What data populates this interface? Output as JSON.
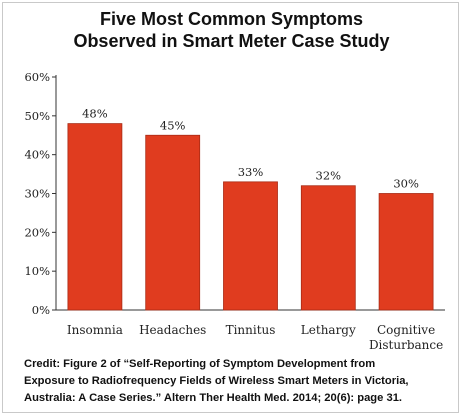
{
  "title": {
    "line1": "Five Most Common Symptoms",
    "line2": "Observed in Smart Meter Case Study"
  },
  "credit": {
    "line1": "Credit:  Figure 2 of “Self-Reporting of Symptom Development from",
    "line2": "Exposure to Radiofrequency Fields of Wireless Smart Meters in Victoria,",
    "line3": "Australia: A Case Series.” Altern Ther Health Med. 2014; 20(6): page 31."
  },
  "chart_data": {
    "type": "bar",
    "categories": [
      [
        "Insomnia"
      ],
      [
        "Headaches"
      ],
      [
        "Tinnitus"
      ],
      [
        "Lethargy"
      ],
      [
        "Cognitive",
        "Disturbance"
      ]
    ],
    "values": [
      48,
      45,
      33,
      32,
      30
    ],
    "value_labels": [
      "48%",
      "45%",
      "33%",
      "32%",
      "30%"
    ],
    "yticks": [
      0,
      10,
      20,
      30,
      40,
      50,
      60
    ],
    "ytick_labels": [
      "0%",
      "10%",
      "20%",
      "30%",
      "40%",
      "50%",
      "60%"
    ],
    "ylim": [
      0,
      60
    ],
    "grid": false,
    "legend": "none",
    "bar_color": "#e03c1f",
    "bar_edge_color": "#a82a14",
    "axis_color": "#333333"
  }
}
